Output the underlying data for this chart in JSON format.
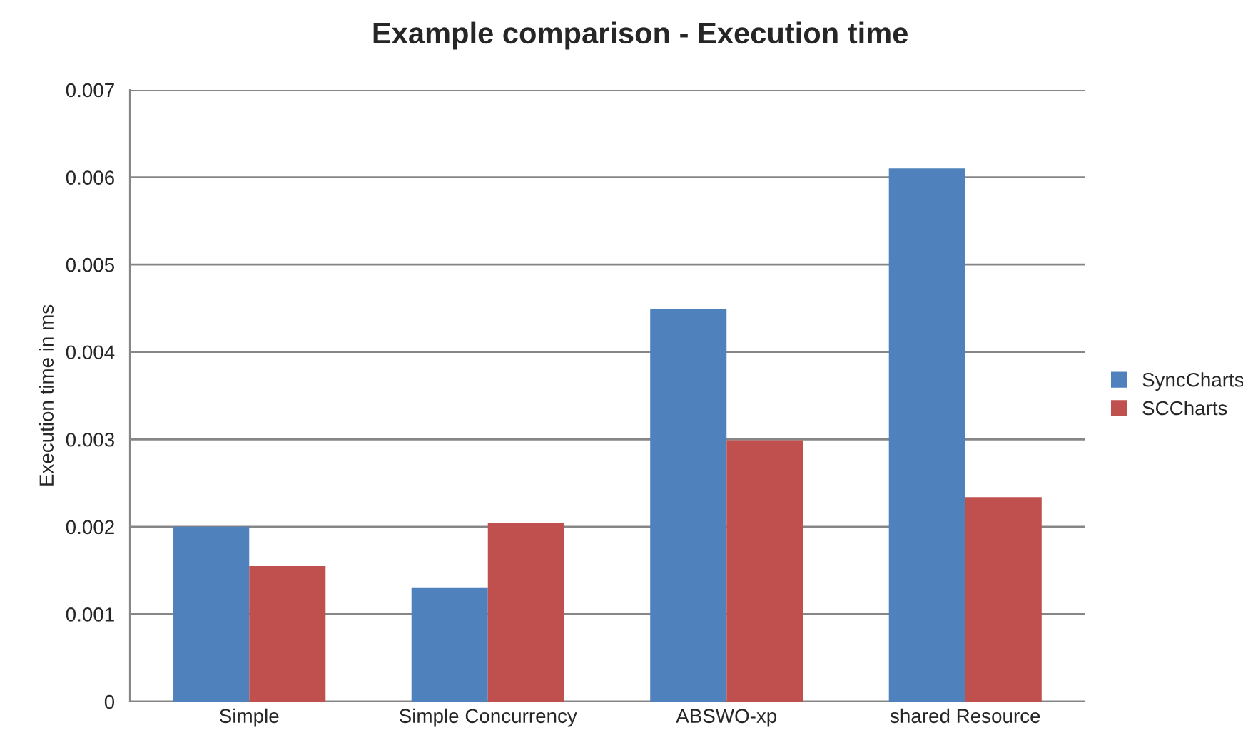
{
  "chart_data": {
    "type": "bar",
    "title": "Example comparison - Execution time",
    "ylabel": "Execution time in ms",
    "categories": [
      "Simple",
      "Simple Concurrency",
      "ABSWO-xp",
      "shared Resource"
    ],
    "series": [
      {
        "name": "SyncCharts",
        "color": "#4f81bd",
        "values": [
          0.002,
          0.0013,
          0.00449,
          0.0061
        ]
      },
      {
        "name": "SCCharts",
        "color": "#c0504d",
        "values": [
          0.00155,
          0.00204,
          0.00299,
          0.00234
        ]
      }
    ],
    "ylim": [
      0,
      0.007
    ],
    "yticks": [
      {
        "value": 0,
        "label": "0"
      },
      {
        "value": 0.001,
        "label": "0.001"
      },
      {
        "value": 0.002,
        "label": "0.002"
      },
      {
        "value": 0.003,
        "label": "0.003"
      },
      {
        "value": 0.004,
        "label": "0.004"
      },
      {
        "value": 0.005,
        "label": "0.005"
      },
      {
        "value": 0.006,
        "label": "0.006"
      },
      {
        "value": 0.007,
        "label": "0.007"
      }
    ],
    "grid": "y",
    "legend": "right"
  }
}
